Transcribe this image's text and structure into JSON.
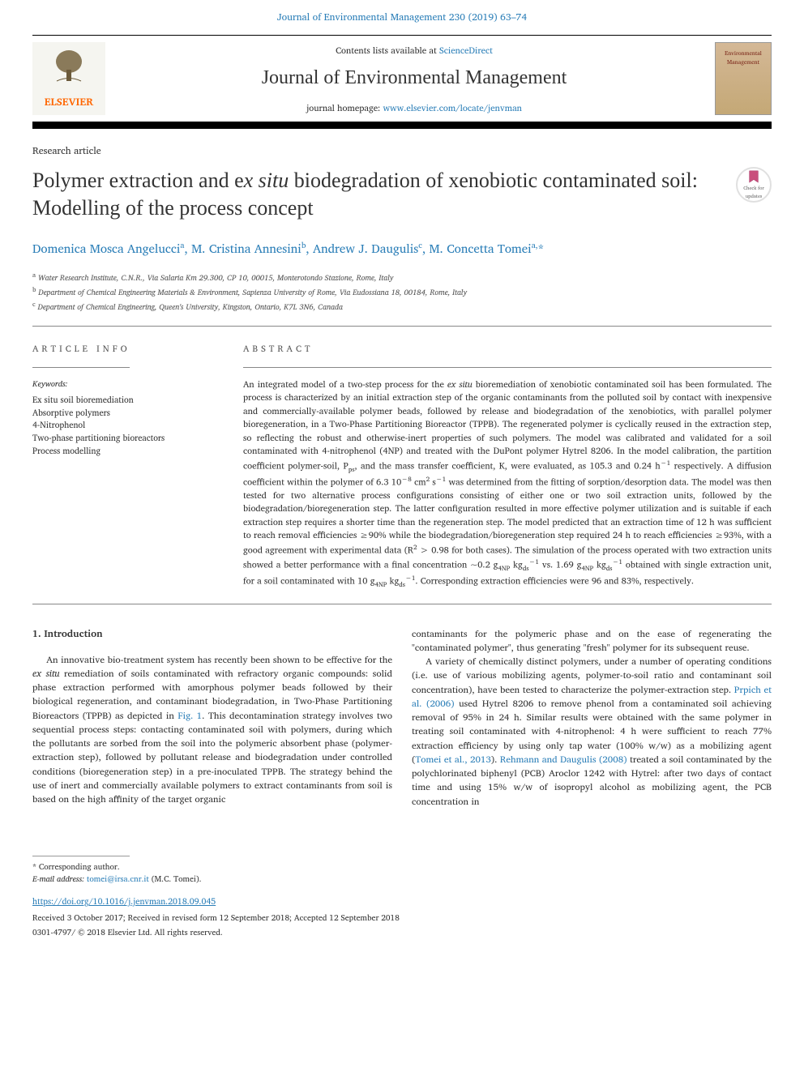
{
  "top_link": "Journal of Environmental Management 230 (2019) 63–74",
  "header": {
    "contents_prefix": "Contents lists available at ",
    "contents_link": "ScienceDirect",
    "journal": "Journal of Environmental Management",
    "homepage_prefix": "journal homepage: ",
    "homepage_link": "www.elsevier.com/locate/jenvman",
    "publisher": "ELSEVIER",
    "cover_label1": "Environmental",
    "cover_label2": "Management"
  },
  "updates_badge": {
    "line1": "Check for",
    "line2": "updates"
  },
  "article": {
    "type": "Research article",
    "title_part1": "Polymer extraction and e",
    "title_italic": "x situ",
    "title_part2": " biodegradation of xenobiotic contaminated soil: Modelling of the process concept",
    "authors_html": "Domenica Mosca Angelucci<span class='sup'>a</span>, M. Cristina Annesini<span class='sup'>b</span>, Andrew J. Daugulis<span class='sup'>c</span>, M. Concetta Tomei<span class='sup'>a,</span>*",
    "affiliations": [
      {
        "sup": "a",
        "text": "Water Research Institute, C.N.R., Via Salaria Km 29.300, CP 10, 00015, Monterotondo Stazione, Rome, Italy"
      },
      {
        "sup": "b",
        "text": "Department of Chemical Engineering Materials & Environment, Sapienza University of Rome, Via Eudossiana 18, 00184, Rome, Italy"
      },
      {
        "sup": "c",
        "text": "Department of Chemical Engineering, Queen's University, Kingston, Ontario, K7L 3N6, Canada"
      }
    ]
  },
  "info": {
    "section_header": "ARTICLE INFO",
    "keywords_label": "Keywords:",
    "keywords": [
      "Ex situ soil bioremediation",
      "Absorptive polymers",
      "4-Nitrophenol",
      "Two-phase partitioning bioreactors",
      "Process modelling"
    ]
  },
  "abstract": {
    "section_header": "ABSTRACT",
    "text_html": "An integrated model of a two-step process for the <i>ex situ</i> bioremediation of xenobiotic contaminated soil has been formulated. The process is characterized by an initial extraction step of the organic contaminants from the polluted soil by contact with inexpensive and commercially-available polymer beads, followed by release and biodegradation of the xenobiotics, with parallel polymer bioregeneration, in a Two-Phase Partitioning Bioreactor (TPPB). The regenerated polymer is cyclically reused in the extraction step, so reflecting the robust and otherwise-inert properties of such polymers. The model was calibrated and validated for a soil contaminated with 4-nitrophenol (4NP) and treated with the DuPont polymer Hytrel 8206. In the model calibration, the partition coefficient polymer-soil, P<span class='sub'>ps</span>, and the mass transfer coefficient, K, were evaluated, as 105.3 and 0.24 h<span class='sup'>−1</span> respectively. A diffusion coefficient within the polymer of 6.3 10<span class='sup'>−8</span> cm<span class='sup'>2</span> s<span class='sup'>−1</span> was determined from the fitting of sorption/desorption data. The model was then tested for two alternative process configurations consisting of either one or two soil extraction units, followed by the biodegradation/bioregeneration step. The latter configuration resulted in more effective polymer utilization and is suitable if each extraction step requires a shorter time than the regeneration step. The model predicted that an extraction time of 12 h was sufficient to reach removal efficiencies ≥90% while the biodegradation/bioregeneration step required 24 h to reach efficiencies ≥93%, with a good agreement with experimental data (R<span class='sup'>2</span> > 0.98 for both cases). The simulation of the process operated with two extraction units showed a better performance with a final concentration ~0.2 g<span class='sub'>4NP</span> kg<span class='sub'>ds</span><span class='sup'>−1</span> vs. 1.69 g<span class='sub'>4NP</span> kg<span class='sub'>ds</span><span class='sup'>−1</span> obtained with single extraction unit, for a soil contaminated with 10 g<span class='sub'>4NP</span> kg<span class='sub'>ds</span><span class='sup'>−1</span>. Corresponding extraction efficiencies were 96 and 83%, respectively."
  },
  "body": {
    "section_number": "1.",
    "section_title": "Introduction",
    "p1_html": "An innovative bio-treatment system has recently been shown to be effective for the <i>ex situ</i> remediation of soils contaminated with refractory organic compounds: solid phase extraction performed with amorphous polymer beads followed by their biological regeneration, and contaminant biodegradation, in Two-Phase Partitioning Bioreactors (TPPB) as depicted in <a href='#'>Fig. 1</a>. This decontamination strategy involves two sequential process steps: contacting contaminated soil with polymers, during which the pollutants are sorbed from the soil into the polymeric absorbent phase (polymer-extraction step), followed by pollutant release and biodegradation under controlled conditions (bioregeneration step) in a pre-inoculated TPPB. The strategy behind the use of inert and commercially available polymers to extract contaminants from soil is based on the high affinity of the target organic",
    "p2_html": "contaminants for the polymeric phase and on the ease of regenerating the \"contaminated polymer\", thus generating \"fresh\" polymer for its subsequent reuse.",
    "p3_html": "A variety of chemically distinct polymers, under a number of operating conditions (i.e. use of various mobilizing agents, polymer-to-soil ratio and contaminant soil concentration), have been tested to characterize the polymer-extraction step. <a href='#'>Prpich et al. (2006)</a> used Hytrel 8206 to remove phenol from a contaminated soil achieving removal of 95% in 24 h. Similar results were obtained with the same polymer in treating soil contaminated with 4-nitrophenol: 4 h were sufficient to reach 77% extraction efficiency by using only tap water (100% w/w) as a mobilizing agent (<a href='#'>Tomei et al., 2013</a>). <a href='#'>Rehmann and Daugulis (2008)</a> treated a soil contaminated by the polychlorinated biphenyl (PCB) Aroclor 1242 with Hytrel: after two days of contact time and using 15% w/w of isopropyl alcohol as mobilizing agent, the PCB concentration in"
  },
  "footer": {
    "corresponding": "* Corresponding author.",
    "email_label": "E-mail address: ",
    "email": "tomei@irsa.cnr.it",
    "email_suffix": " (M.C. Tomei).",
    "doi": "https://doi.org/10.1016/j.jenvman.2018.09.045",
    "received": "Received 3 October 2017; Received in revised form 12 September 2018; Accepted 12 September 2018",
    "copyright": "0301-4797/ © 2018 Elsevier Ltd. All rights reserved."
  },
  "colors": {
    "link": "#2c7fb8",
    "orange": "#ff6600",
    "text": "#333333"
  }
}
